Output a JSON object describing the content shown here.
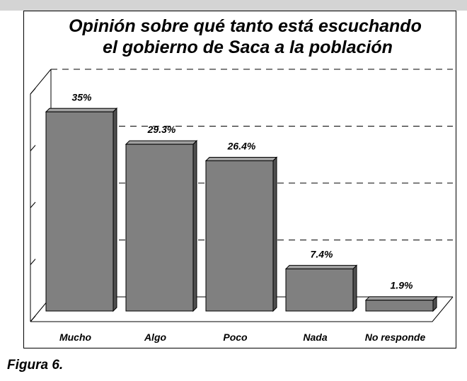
{
  "chart_data": {
    "type": "bar",
    "title": "Opinión sobre qué tanto está escuchando el gobierno de Saca a la población",
    "categories": [
      "Mucho",
      "Algo",
      "Poco",
      "Nada",
      "No responde"
    ],
    "values": [
      35,
      29.3,
      26.4,
      7.4,
      1.9
    ],
    "value_labels": [
      "35%",
      "29.3%",
      "26.4%",
      "7.4%",
      "1.9%"
    ],
    "color": "#808080",
    "ylim": [
      0,
      40
    ],
    "yticks": [
      0,
      10,
      20,
      30,
      40
    ],
    "grid": true
  },
  "caption": "Figura 6."
}
